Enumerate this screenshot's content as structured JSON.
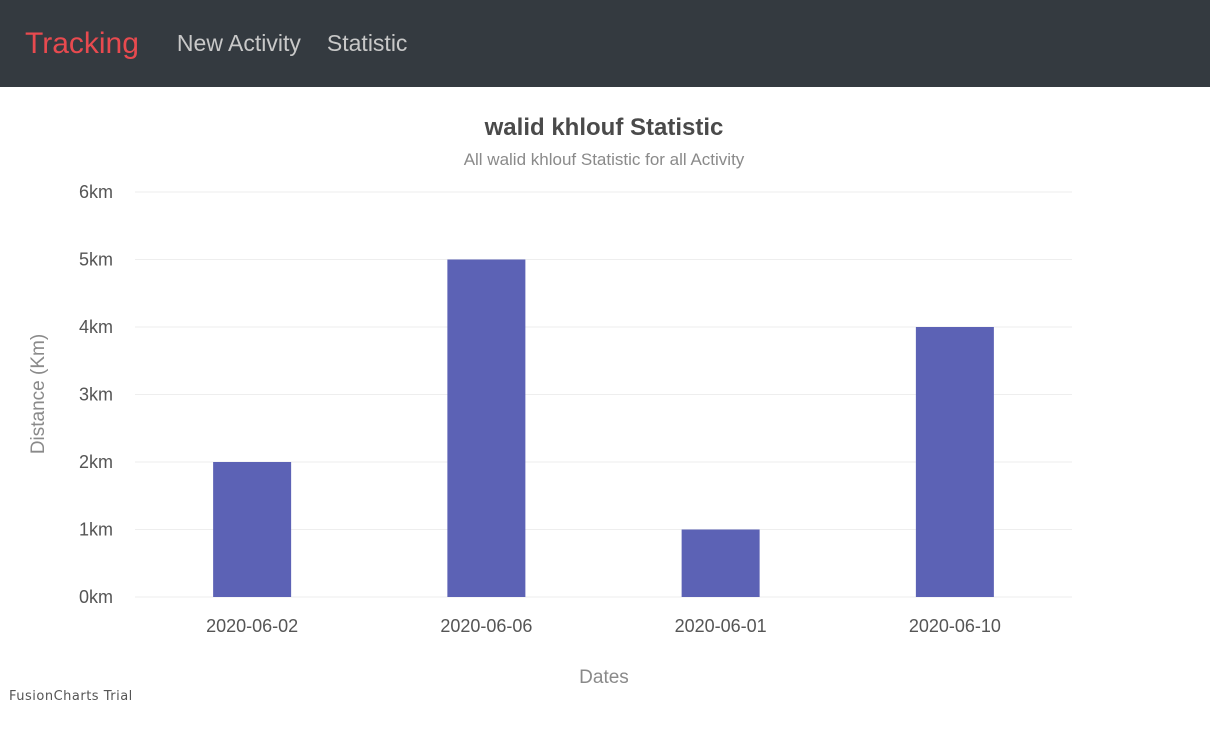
{
  "nav": {
    "brand": "Tracking",
    "links": [
      "New Activity",
      "Statistic"
    ],
    "brand_color": "#e84a4f",
    "background": "#343a40"
  },
  "chart_data": {
    "type": "bar",
    "title": "walid khlouf Statistic",
    "subtitle": "All walid khlouf Statistic for all Activity",
    "xlabel": "Dates",
    "ylabel": "Distance (Km)",
    "categories": [
      "2020-06-02",
      "2020-06-06",
      "2020-06-01",
      "2020-06-10"
    ],
    "values": [
      2,
      5,
      1,
      4
    ],
    "ylim": [
      0,
      6
    ],
    "yticks": [
      "0km",
      "1km",
      "2km",
      "3km",
      "4km",
      "5km",
      "6km"
    ],
    "bar_color": "#5c62b5",
    "grid": true
  },
  "watermark": "FusionCharts Trial"
}
